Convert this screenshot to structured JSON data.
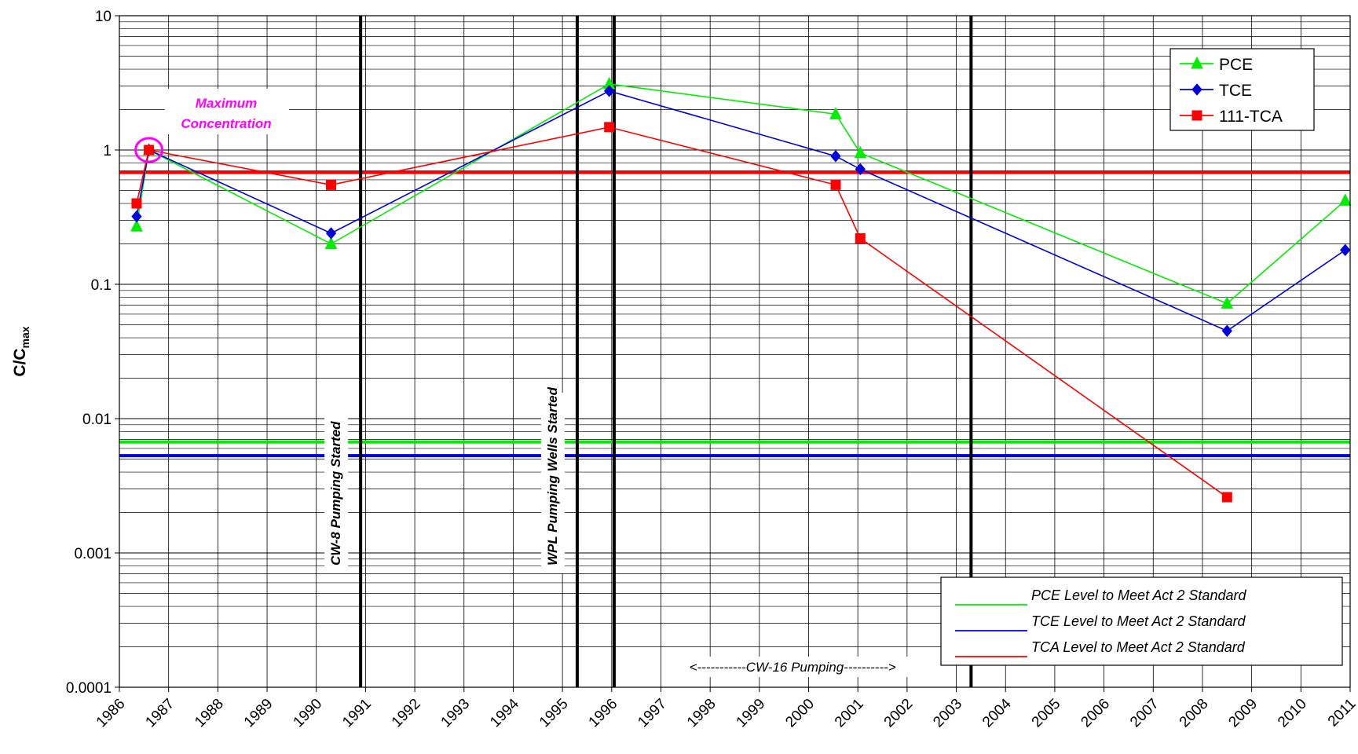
{
  "chart_data": {
    "type": "line",
    "y_scale": "log",
    "ylim": [
      0.0001,
      10
    ],
    "xlim": [
      1986,
      2011
    ],
    "ylabel": "C/C",
    "ylabel_sub": "max",
    "xlabel": "",
    "grid": "on",
    "y_ticks": [
      "0.0001",
      "0.001",
      "0.01",
      "0.1",
      "1",
      "10"
    ],
    "x_ticks": [
      "1986",
      "1987",
      "1988",
      "1989",
      "1990",
      "1991",
      "1992",
      "1993",
      "1994",
      "1995",
      "1996",
      "1997",
      "1998",
      "1999",
      "2000",
      "2001",
      "2002",
      "2003",
      "2004",
      "2005",
      "2006",
      "2007",
      "2008",
      "2009",
      "2010",
      "2011"
    ],
    "series": [
      {
        "name": "PCE",
        "color": "#00ee00",
        "marker": "triangle",
        "x": [
          1986.35,
          1986.6,
          1990.3,
          1995.95,
          2000.55,
          2001.05,
          2008.5,
          2010.9
        ],
        "y": [
          0.27,
          1.0,
          0.2,
          3.1,
          1.85,
          0.95,
          0.072,
          0.42
        ]
      },
      {
        "name": "TCE",
        "color": "#0000dd",
        "marker": "diamond",
        "x": [
          1986.35,
          1986.6,
          1990.3,
          1995.95,
          2000.55,
          2001.05,
          2008.5,
          2010.9
        ],
        "y": [
          0.32,
          1.0,
          0.24,
          2.75,
          0.9,
          0.72,
          0.045,
          0.18
        ]
      },
      {
        "name": "111-TCA",
        "color": "#ff0000",
        "marker": "square",
        "x": [
          1986.35,
          1986.6,
          1990.3,
          1995.95,
          2000.55,
          2001.05,
          2008.5
        ],
        "y": [
          0.4,
          1.0,
          0.55,
          1.48,
          0.55,
          0.22,
          0.0026
        ]
      }
    ],
    "reference_lines": [
      {
        "name": "PCE Level to Meet Act 2 Standard",
        "y": 0.0067,
        "color": "#00ee00"
      },
      {
        "name": "TCE Level to Meet Act 2 Standard",
        "y": 0.0053,
        "color": "#0000dd"
      },
      {
        "name": "TCA Level to Meet Act 2 Standard",
        "y": 0.68,
        "color": "#ff0000"
      }
    ],
    "events": [
      {
        "x": 1990.9,
        "label": "CW-8 Pumping Started"
      },
      {
        "x": 1995.3,
        "label": "WPL Pumping Wells Started"
      },
      {
        "x": 1996.05,
        "label": ""
      },
      {
        "x": 2003.3,
        "label": ""
      }
    ],
    "annotations": {
      "max_label_line1": "Maximum",
      "max_label_line2": "Concentration",
      "max_point": {
        "x": 1986.6,
        "y": 1.0
      },
      "period_label": "<-----------CW-16 Pumping---------->"
    },
    "legend_position": "top-right",
    "reference_legend_position": "bottom-right"
  }
}
